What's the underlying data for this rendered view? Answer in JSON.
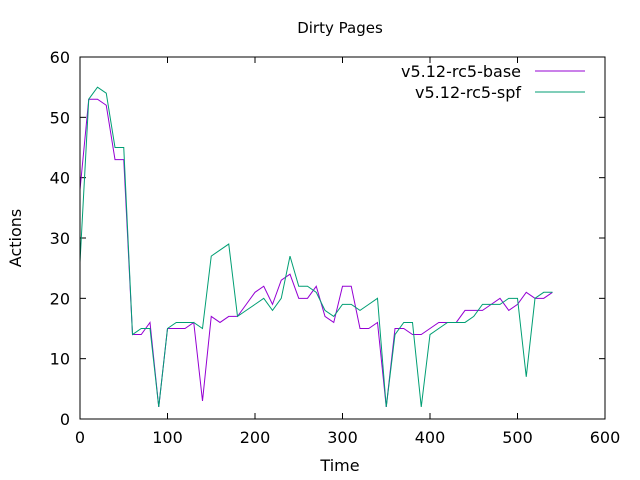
{
  "chart_data": {
    "type": "line",
    "title": "Dirty Pages",
    "xlabel": "Time",
    "ylabel": "Actions",
    "xlim": [
      0,
      600
    ],
    "ylim": [
      0,
      60
    ],
    "xticks": [
      0,
      100,
      200,
      300,
      400,
      500,
      600
    ],
    "yticks": [
      0,
      10,
      20,
      30,
      40,
      50,
      60
    ],
    "grid": false,
    "legend_position": "top-right",
    "series": [
      {
        "name": "v5.12-rc5-base",
        "color": "#9400d3",
        "points": [
          [
            0,
            38
          ],
          [
            10,
            53
          ],
          [
            20,
            53
          ],
          [
            30,
            52
          ],
          [
            40,
            43
          ],
          [
            50,
            43
          ],
          [
            60,
            14
          ],
          [
            70,
            14
          ],
          [
            80,
            16
          ],
          [
            90,
            2
          ],
          [
            100,
            15
          ],
          [
            110,
            15
          ],
          [
            120,
            15
          ],
          [
            130,
            16
          ],
          [
            140,
            3
          ],
          [
            150,
            17
          ],
          [
            160,
            16
          ],
          [
            170,
            17
          ],
          [
            180,
            17
          ],
          [
            190,
            19
          ],
          [
            200,
            21
          ],
          [
            210,
            22
          ],
          [
            220,
            19
          ],
          [
            230,
            23
          ],
          [
            240,
            24
          ],
          [
            250,
            20
          ],
          [
            260,
            20
          ],
          [
            270,
            22
          ],
          [
            280,
            17
          ],
          [
            290,
            16
          ],
          [
            300,
            22
          ],
          [
            310,
            22
          ],
          [
            320,
            15
          ],
          [
            330,
            15
          ],
          [
            340,
            16
          ],
          [
            350,
            2
          ],
          [
            360,
            15
          ],
          [
            370,
            15
          ],
          [
            380,
            14
          ],
          [
            390,
            14
          ],
          [
            400,
            15
          ],
          [
            410,
            16
          ],
          [
            420,
            16
          ],
          [
            430,
            16
          ],
          [
            440,
            18
          ],
          [
            450,
            18
          ],
          [
            460,
            18
          ],
          [
            470,
            19
          ],
          [
            480,
            20
          ],
          [
            490,
            18
          ],
          [
            500,
            19
          ],
          [
            510,
            21
          ],
          [
            520,
            20
          ],
          [
            530,
            20
          ],
          [
            540,
            21
          ]
        ]
      },
      {
        "name": "v5.12-rc5-spf",
        "color": "#009e73",
        "points": [
          [
            0,
            26
          ],
          [
            10,
            53
          ],
          [
            20,
            55
          ],
          [
            30,
            54
          ],
          [
            40,
            45
          ],
          [
            50,
            45
          ],
          [
            60,
            14
          ],
          [
            70,
            15
          ],
          [
            80,
            15
          ],
          [
            90,
            2
          ],
          [
            100,
            15
          ],
          [
            110,
            16
          ],
          [
            120,
            16
          ],
          [
            130,
            16
          ],
          [
            140,
            15
          ],
          [
            150,
            27
          ],
          [
            160,
            28
          ],
          [
            170,
            29
          ],
          [
            180,
            17
          ],
          [
            190,
            18
          ],
          [
            200,
            19
          ],
          [
            210,
            20
          ],
          [
            220,
            18
          ],
          [
            230,
            20
          ],
          [
            240,
            27
          ],
          [
            250,
            22
          ],
          [
            260,
            22
          ],
          [
            270,
            21
          ],
          [
            280,
            18
          ],
          [
            290,
            17
          ],
          [
            300,
            19
          ],
          [
            310,
            19
          ],
          [
            320,
            18
          ],
          [
            330,
            19
          ],
          [
            340,
            20
          ],
          [
            350,
            2
          ],
          [
            360,
            14
          ],
          [
            370,
            16
          ],
          [
            380,
            16
          ],
          [
            390,
            2
          ],
          [
            400,
            14
          ],
          [
            410,
            15
          ],
          [
            420,
            16
          ],
          [
            430,
            16
          ],
          [
            440,
            16
          ],
          [
            450,
            17
          ],
          [
            460,
            19
          ],
          [
            470,
            19
          ],
          [
            480,
            19
          ],
          [
            490,
            20
          ],
          [
            500,
            20
          ],
          [
            510,
            7
          ],
          [
            520,
            20
          ],
          [
            530,
            21
          ],
          [
            540,
            21
          ]
        ]
      }
    ]
  }
}
